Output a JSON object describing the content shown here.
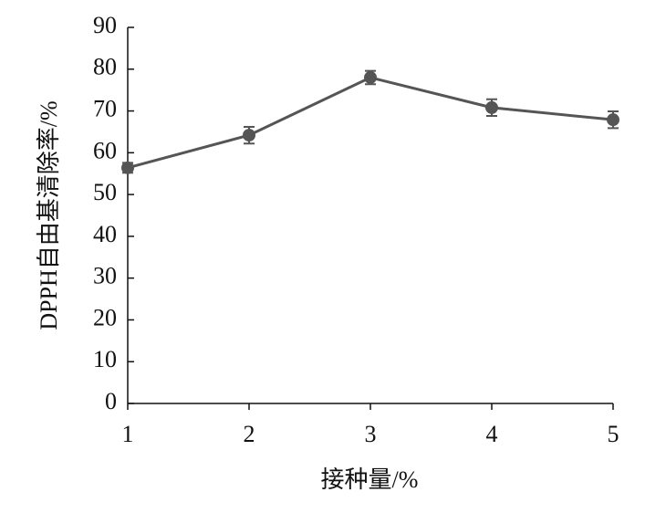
{
  "chart_data": {
    "type": "line",
    "x_label": "接种量/%",
    "y_label": "DPPH自由基清除率/%",
    "x": [
      1,
      2,
      3,
      4,
      5
    ],
    "series": [
      {
        "color": "#555555",
        "values": [
          56.4,
          64.2,
          78.0,
          70.8,
          67.9
        ],
        "errors": [
          1.2,
          2.0,
          1.6,
          2.0,
          2.0
        ]
      }
    ],
    "xlim": [
      1,
      5
    ],
    "xticks": [
      1,
      2,
      3,
      4,
      5
    ],
    "ylim": [
      0,
      90
    ],
    "yticks": [
      0,
      10,
      20,
      30,
      40,
      50,
      60,
      70,
      80,
      90
    ],
    "grid": false
  }
}
